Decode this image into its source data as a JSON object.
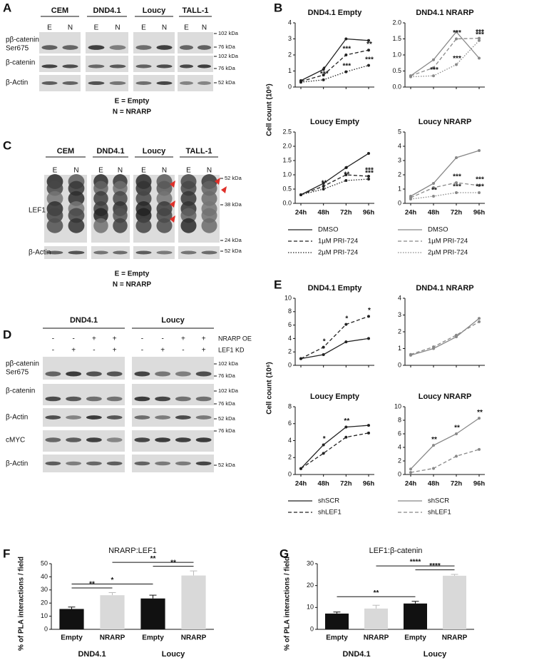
{
  "panel_letters": [
    "A",
    "B",
    "C",
    "D",
    "E",
    "F",
    "G"
  ],
  "blot_a": {
    "cell_lines": [
      "CEM",
      "DND4.1",
      "Loucy",
      "TALL-1"
    ],
    "lanes": [
      "E",
      "N"
    ],
    "rows": [
      [
        "pβ-catenin",
        "Ser675"
      ],
      [
        "β-catenin"
      ],
      [
        "β-Actin"
      ]
    ],
    "markers": [
      "102 kDa",
      "76 kDa",
      "102 kDa",
      "76 kDa",
      "52 kDa"
    ],
    "legend": [
      "E = Empty",
      "N = NRARP"
    ]
  },
  "blot_c": {
    "cell_lines": [
      "CEM",
      "DND4.1",
      "Loucy",
      "TALL-1"
    ],
    "lanes": [
      "E",
      "N"
    ],
    "rows": [
      [
        "LEF1"
      ],
      [
        "β-Actin"
      ]
    ],
    "markers": [
      "52 kDa",
      "38 kDa",
      "24 kDa",
      "52 kDa"
    ],
    "legend": [
      "E = Empty",
      "N = NRARP"
    ]
  },
  "blot_d": {
    "cell_lines": [
      "DND4.1",
      "Loucy"
    ],
    "conditions": [
      {
        "name": "NRARP OE",
        "signs": [
          "-",
          "-",
          "+",
          "+",
          "-",
          "-",
          "+",
          "+"
        ]
      },
      {
        "name": "LEF1 KD",
        "signs": [
          "-",
          "+",
          "-",
          "+",
          "-",
          "+",
          "-",
          "+"
        ]
      }
    ],
    "rows": [
      [
        "pβ-catenin",
        "Ser675"
      ],
      [
        "β-catenin"
      ],
      [
        "β-Actin"
      ],
      [
        "cMYC"
      ],
      [
        "β-Actin"
      ]
    ],
    "markers": [
      "102 kDa",
      "76 kDa",
      "102 kDa",
      "76 kDa",
      "52 kDa",
      "76 kDa",
      "52 kDa"
    ]
  },
  "chart_data": [
    {
      "type": "line",
      "title": "DND4.1 Empty",
      "ylabel": "Cell count (10⁶)",
      "ylim": [
        0,
        4
      ],
      "yticks": [
        0,
        1,
        2,
        3,
        4
      ],
      "series": [
        {
          "color": "#222222",
          "style": "solid",
          "values": [
            0.4,
            1.1,
            3.0,
            2.9
          ]
        },
        {
          "color": "#222222",
          "style": "dashed",
          "values": [
            0.35,
            0.75,
            2.0,
            2.3
          ],
          "point_labels": [
            null,
            "*",
            "***",
            "**"
          ]
        },
        {
          "color": "#222222",
          "style": "dotted",
          "values": [
            0.3,
            0.45,
            0.95,
            1.35
          ],
          "point_labels": [
            null,
            "***",
            "***",
            "***"
          ]
        }
      ]
    },
    {
      "type": "line",
      "title": "DND4.1 NRARP",
      "ylim": [
        0,
        2
      ],
      "yticks": [
        {
          "value": 0,
          "label": "0.0"
        },
        0.5,
        {
          "value": 1,
          "label": "1.0"
        },
        1.5,
        {
          "value": 2,
          "label": "2.0"
        }
      ],
      "series": [
        {
          "color": "#888888",
          "style": "solid",
          "values": [
            0.35,
            0.85,
            1.72,
            0.9
          ]
        },
        {
          "color": "#888888",
          "style": "dashed",
          "values": [
            0.35,
            0.6,
            1.5,
            1.52
          ],
          "point_labels": [
            null,
            null,
            "***",
            "***"
          ]
        },
        {
          "color": "#888888",
          "style": "dotted",
          "values": [
            0.32,
            0.35,
            0.7,
            1.45
          ],
          "point_labels": [
            null,
            "***",
            "***",
            "***"
          ]
        }
      ]
    },
    {
      "type": "line",
      "title": "Loucy Empty",
      "categories": [
        "24h",
        "48h",
        "72h",
        "96h"
      ],
      "legend": true,
      "ylim": [
        0,
        2.5
      ],
      "yticks": [
        {
          "value": 0,
          "label": "0.0"
        },
        0.5,
        {
          "value": 1,
          "label": "1.0"
        },
        1.5,
        {
          "value": 2,
          "label": "2.0"
        },
        2.5
      ],
      "series": [
        {
          "name": "DMSO",
          "color": "#222222",
          "style": "solid",
          "values": [
            0.3,
            0.7,
            1.25,
            1.75
          ]
        },
        {
          "name": "1µM PRI-724",
          "color": "#222222",
          "style": "dashed",
          "values": [
            0.3,
            0.6,
            1.0,
            0.95
          ],
          "point_labels": [
            null,
            null,
            "*",
            "***"
          ]
        },
        {
          "name": "2µM PRI-724",
          "color": "#222222",
          "style": "dotted",
          "values": [
            0.3,
            0.5,
            0.8,
            0.85
          ],
          "point_labels": [
            null,
            "**",
            "**",
            "***"
          ]
        }
      ]
    },
    {
      "type": "line",
      "title": "Loucy NRARP",
      "categories": [
        "24h",
        "48h",
        "72h",
        "96h"
      ],
      "legend": true,
      "ylim": [
        0,
        5
      ],
      "yticks": [
        0,
        1,
        2,
        3,
        4,
        5
      ],
      "series": [
        {
          "name": "DMSO",
          "color": "#888888",
          "style": "solid",
          "values": [
            0.5,
            1.4,
            3.2,
            3.7
          ]
        },
        {
          "name": "1µM PRI-724",
          "color": "#888888",
          "style": "dashed",
          "values": [
            0.4,
            1.1,
            1.45,
            1.25
          ],
          "point_labels": [
            null,
            null,
            "***",
            "***"
          ]
        },
        {
          "name": "2µM PRI-724",
          "color": "#888888",
          "style": "dotted",
          "values": [
            0.3,
            0.5,
            0.75,
            0.75
          ],
          "point_labels": [
            null,
            "**",
            "***",
            "***"
          ]
        }
      ]
    },
    {
      "type": "line",
      "title": "DND4.1 Empty",
      "ylabel": "Cell count (10⁶)",
      "ylim": [
        0,
        10
      ],
      "yticks": [
        0,
        2,
        4,
        6,
        8,
        10
      ],
      "series": [
        {
          "color": "#222222",
          "style": "solid",
          "values": [
            1.0,
            1.6,
            3.5,
            4.0
          ]
        },
        {
          "color": "#222222",
          "style": "dashed",
          "values": [
            1.0,
            2.7,
            6.1,
            7.3
          ],
          "point_labels": [
            null,
            "*",
            "*",
            "*"
          ]
        }
      ]
    },
    {
      "type": "line",
      "title": "DND4.1 NRARP",
      "ylim": [
        0,
        4
      ],
      "yticks": [
        0,
        1,
        2,
        3,
        4
      ],
      "series": [
        {
          "color": "#888888",
          "style": "solid",
          "values": [
            0.6,
            1.0,
            1.7,
            2.8
          ]
        },
        {
          "color": "#888888",
          "style": "dashed",
          "values": [
            0.65,
            1.1,
            1.8,
            2.6
          ]
        }
      ]
    },
    {
      "type": "line",
      "title": "Loucy Empty",
      "categories": [
        "24h",
        "48h",
        "72h",
        "96h"
      ],
      "legend": true,
      "ylim": [
        0,
        8
      ],
      "yticks": [
        0,
        2,
        4,
        6,
        8
      ],
      "series": [
        {
          "name": "shSCR",
          "color": "#222222",
          "style": "solid",
          "values": [
            0.7,
            3.5,
            5.6,
            5.8
          ],
          "point_labels": [
            null,
            "*",
            "**",
            null
          ]
        },
        {
          "name": "shLEF1",
          "color": "#222222",
          "style": "dashed",
          "values": [
            0.7,
            2.5,
            4.4,
            4.9
          ]
        }
      ]
    },
    {
      "type": "line",
      "title": "Loucy NRARP",
      "categories": [
        "24h",
        "48h",
        "72h",
        "96h"
      ],
      "legend": true,
      "ylim": [
        0,
        10
      ],
      "yticks": [
        0,
        2,
        4,
        6,
        8,
        10
      ],
      "series": [
        {
          "name": "shSCR",
          "color": "#888888",
          "style": "solid",
          "values": [
            0.8,
            4.3,
            6.0,
            8.3
          ],
          "point_labels": [
            null,
            "**",
            "**",
            "**"
          ]
        },
        {
          "name": "shLEF1",
          "color": "#888888",
          "style": "dashed",
          "values": [
            0.3,
            0.9,
            2.7,
            3.7
          ]
        }
      ]
    },
    {
      "type": "bar",
      "title": "NRARP:LEF1",
      "ylabel": "% of PLA interactions / field",
      "categories": [
        "Empty",
        "NRARP",
        "Empty",
        "NRARP"
      ],
      "groups": [
        "DND4.1",
        "Loucy"
      ],
      "values": [
        15.5,
        26,
        23.5,
        41
      ],
      "errors": [
        1.5,
        2,
        2.5,
        3.5
      ],
      "colors": [
        "#111111",
        "#d9d9d9",
        "#111111",
        "#d9d9d9"
      ],
      "ylim": [
        0,
        50
      ],
      "yticks": [
        0,
        10,
        20,
        30,
        40,
        50
      ],
      "significance": [
        {
          "between": [
            0,
            1
          ],
          "label": "**"
        },
        {
          "between": [
            0,
            2
          ],
          "label": "*"
        },
        {
          "between": [
            2,
            3
          ],
          "label": "**"
        },
        {
          "between": [
            1,
            3
          ],
          "label": "**"
        }
      ]
    },
    {
      "type": "bar",
      "title": "LEF1:β-catenin",
      "ylabel": "% of PLA interactions / field",
      "categories": [
        "Empty",
        "NRARP",
        "Empty",
        "NRARP"
      ],
      "groups": [
        "DND4.1",
        "Loucy"
      ],
      "values": [
        7.2,
        9.5,
        11.8,
        24.5
      ],
      "errors": [
        0.7,
        1.5,
        1.0,
        0.6
      ],
      "colors": [
        "#111111",
        "#d9d9d9",
        "#111111",
        "#d9d9d9"
      ],
      "ylim": [
        0,
        30
      ],
      "yticks": [
        0,
        10,
        20,
        30
      ],
      "significance": [
        {
          "between": [
            0,
            2
          ],
          "label": "**"
        },
        {
          "between": [
            2,
            3
          ],
          "label": "****"
        },
        {
          "between": [
            1,
            3
          ],
          "label": "****"
        }
      ]
    }
  ]
}
